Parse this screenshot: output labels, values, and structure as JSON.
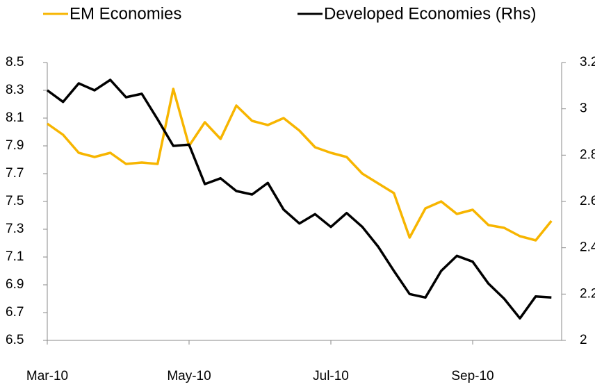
{
  "chart_data": {
    "type": "line",
    "categories": [
      "Mar-10",
      null,
      null,
      null,
      null,
      null,
      null,
      null,
      null,
      "May-10",
      null,
      null,
      null,
      null,
      null,
      null,
      null,
      null,
      "Jul-10",
      null,
      null,
      null,
      null,
      null,
      null,
      null,
      null,
      "Sep-10",
      null,
      null,
      null,
      null,
      null
    ],
    "series": [
      {
        "name": "EM Economies",
        "color": "#f7b500",
        "axis": "y",
        "values": [
          8.06,
          7.98,
          7.85,
          7.82,
          7.85,
          7.77,
          7.78,
          7.77,
          8.31,
          7.9,
          8.07,
          7.95,
          8.19,
          8.08,
          8.05,
          8.1,
          8.01,
          7.89,
          7.85,
          7.82,
          7.7,
          7.63,
          7.56,
          7.24,
          7.45,
          7.5,
          7.41,
          7.44,
          7.33,
          7.31,
          7.25,
          7.22,
          7.36
        ]
      },
      {
        "name": "Developed Economies (Rhs)",
        "color": "#000000",
        "axis": "y2",
        "values": [
          3.08,
          3.03,
          3.11,
          3.08,
          3.125,
          3.05,
          3.065,
          2.955,
          2.84,
          2.845,
          2.675,
          2.7,
          2.645,
          2.63,
          2.68,
          2.565,
          2.505,
          2.545,
          2.49,
          2.55,
          2.49,
          2.405,
          2.3,
          2.2,
          2.185,
          2.3,
          2.365,
          2.34,
          2.245,
          2.18,
          2.095,
          2.19,
          2.185
        ]
      }
    ],
    "ylim": [
      6.5,
      8.5
    ],
    "yticks": [
      6.5,
      6.7,
      6.9,
      7.1,
      7.3,
      7.5,
      7.7,
      7.9,
      8.1,
      8.3,
      8.5
    ],
    "y2lim": [
      2,
      3.2
    ],
    "y2ticks": [
      2,
      2.2,
      2.4,
      2.6,
      2.8,
      3,
      3.2
    ],
    "grid": false,
    "legend": "top"
  }
}
